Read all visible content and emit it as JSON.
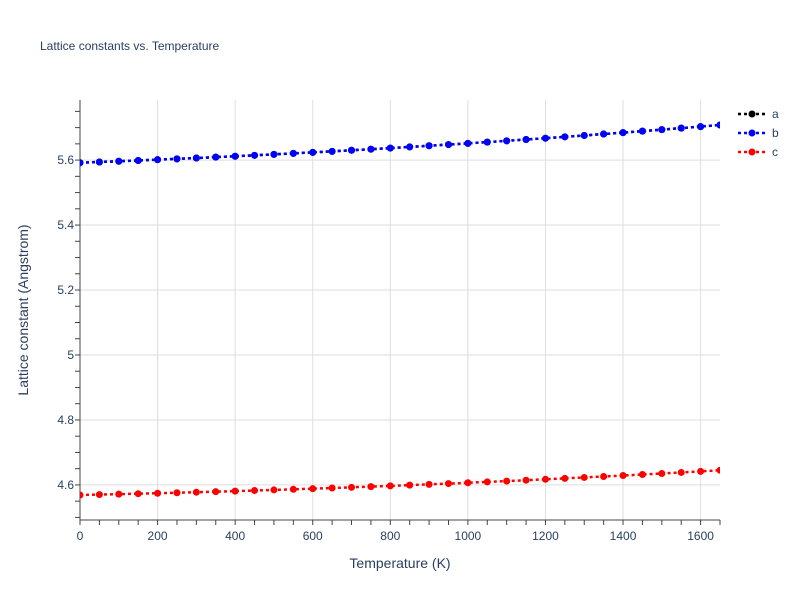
{
  "chart_data": {
    "type": "line",
    "title": "Lattice constants vs. Temperature",
    "xlabel": "Temperature (K)",
    "ylabel": "Lattice constant (Angstrom)",
    "xlim": [
      0,
      1650
    ],
    "ylim": [
      4.492,
      5.785
    ],
    "grid": true,
    "legend_position": "top-right",
    "xticks": [
      0,
      200,
      400,
      600,
      800,
      1000,
      1200,
      1400,
      1600
    ],
    "xtick_labels": [
      "0",
      "200",
      "400",
      "600",
      "800",
      "1000",
      "1200",
      "1400",
      "1600"
    ],
    "yticks": [
      4.6,
      4.8,
      5.0,
      5.2,
      5.4,
      5.6
    ],
    "ytick_labels": [
      "4.6",
      "4.8",
      "5",
      "5.2",
      "5.4",
      "5.6"
    ],
    "x": [
      0,
      50,
      100,
      150,
      200,
      250,
      300,
      350,
      400,
      450,
      500,
      550,
      600,
      650,
      700,
      750,
      800,
      850,
      900,
      950,
      1000,
      1050,
      1100,
      1150,
      1200,
      1250,
      1300,
      1350,
      1400,
      1450,
      1500,
      1550,
      1600,
      1650
    ],
    "series": [
      {
        "name": "a",
        "color": "#000000",
        "values": [
          5.592,
          5.5942,
          5.5965,
          5.5988,
          5.6013,
          5.6038,
          5.6064,
          5.6091,
          5.6119,
          5.6147,
          5.6176,
          5.6207,
          5.6238,
          5.6269,
          5.6302,
          5.6335,
          5.637,
          5.6405,
          5.6441,
          5.6478,
          5.6515,
          5.6554,
          5.6593,
          5.6633,
          5.6674,
          5.6716,
          5.6759,
          5.6802,
          5.6846,
          5.6891,
          5.6937,
          5.6984,
          5.7031,
          5.708
        ]
      },
      {
        "name": "b",
        "color": "#0000ff",
        "values": [
          5.592,
          5.5942,
          5.5965,
          5.5988,
          5.6013,
          5.6038,
          5.6064,
          5.6091,
          5.6119,
          5.6147,
          5.6176,
          5.6207,
          5.6238,
          5.6269,
          5.6302,
          5.6335,
          5.637,
          5.6405,
          5.6441,
          5.6478,
          5.6515,
          5.6554,
          5.6593,
          5.6633,
          5.6674,
          5.6716,
          5.6759,
          5.6802,
          5.6846,
          5.6891,
          5.6937,
          5.6984,
          5.7031,
          5.708
        ]
      },
      {
        "name": "c",
        "color": "#ff0000",
        "values": [
          4.569,
          4.5703,
          4.5716,
          4.573,
          4.5744,
          4.576,
          4.5776,
          4.5792,
          4.5809,
          4.5827,
          4.5846,
          4.5865,
          4.5884,
          4.5905,
          4.5926,
          4.5948,
          4.597,
          4.5993,
          4.6017,
          4.6041,
          4.6066,
          4.6092,
          4.6118,
          4.6145,
          4.6173,
          4.6201,
          4.623,
          4.6259,
          4.6289,
          4.632,
          4.6352,
          4.6384,
          4.6417,
          4.645
        ]
      }
    ]
  }
}
